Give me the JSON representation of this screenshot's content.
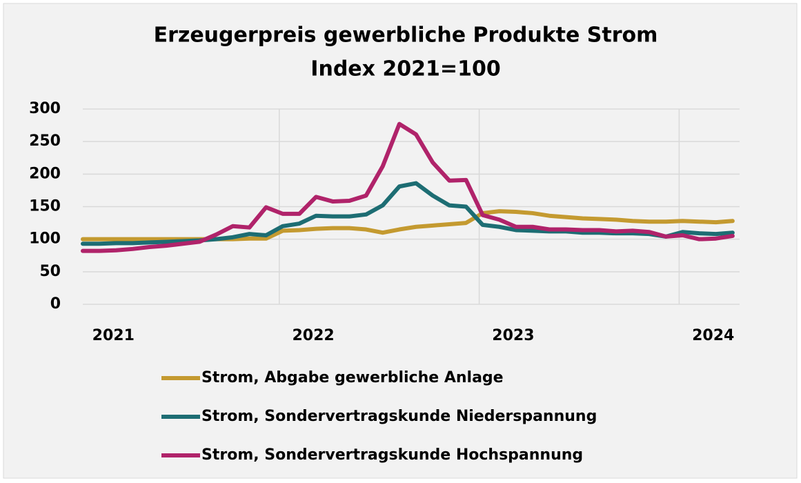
{
  "chart_data": {
    "type": "line",
    "title": "Erzeugerpreis gewerbliche Produkte Strom",
    "subtitle": "Index 2021=100",
    "categories": [
      null,
      null,
      "2021",
      null,
      null,
      null,
      null,
      null,
      null,
      null,
      null,
      null,
      null,
      null,
      "2022",
      null,
      null,
      null,
      null,
      null,
      null,
      null,
      null,
      null,
      null,
      null,
      "2023",
      null,
      null,
      null,
      null,
      null,
      null,
      null,
      null,
      null,
      null,
      null,
      "2024",
      null
    ],
    "series": [
      {
        "name": "Strom, Abgabe gewerbliche Anlage",
        "color": "#c49a30",
        "values": [
          100,
          100,
          100,
          100,
          100,
          100,
          100,
          100,
          100,
          100,
          101,
          101,
          113,
          114,
          116,
          117,
          117,
          115,
          110,
          115,
          119,
          121,
          123,
          125,
          140,
          143,
          142,
          140,
          136,
          134,
          132,
          131,
          130,
          128,
          127,
          127,
          128,
          127,
          126,
          128
        ]
      },
      {
        "name": "Strom, Sondervertragskunde Niederspannung",
        "color": "#1d6d73",
        "values": [
          93,
          93,
          94,
          94,
          95,
          96,
          97,
          98,
          100,
          103,
          108,
          106,
          120,
          124,
          136,
          135,
          135,
          138,
          152,
          181,
          186,
          167,
          152,
          150,
          122,
          119,
          114,
          113,
          112,
          112,
          110,
          110,
          109,
          109,
          108,
          104,
          111,
          109,
          108,
          110
        ]
      },
      {
        "name": "Strom, Sondervertragskunde Hochspannung",
        "color": "#b0236a",
        "values": [
          82,
          82,
          83,
          85,
          88,
          90,
          93,
          96,
          107,
          120,
          118,
          149,
          139,
          139,
          165,
          158,
          159,
          167,
          212,
          277,
          261,
          218,
          190,
          191,
          137,
          130,
          119,
          119,
          115,
          115,
          114,
          114,
          112,
          113,
          111,
          104,
          106,
          100,
          101,
          105
        ]
      }
    ],
    "ylim": [
      0,
      300
    ],
    "yticks": [
      0,
      50,
      100,
      150,
      200,
      250,
      300
    ],
    "grid": true
  }
}
